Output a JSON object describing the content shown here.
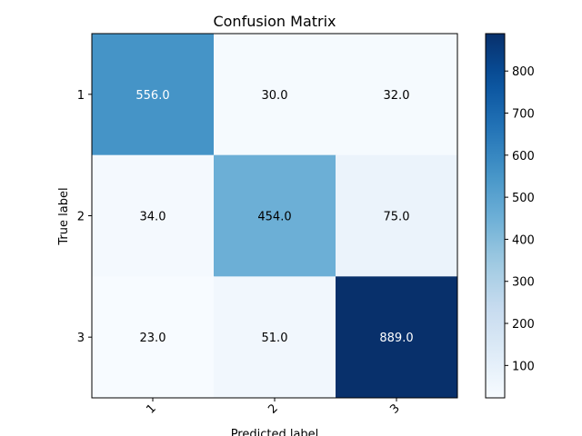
{
  "chart_data": {
    "type": "heatmap",
    "title": "Confusion Matrix",
    "xlabel": "Predicted label",
    "ylabel": "True label",
    "x_categories": [
      "1",
      "2",
      "3"
    ],
    "y_categories": [
      "1",
      "2",
      "3"
    ],
    "values": [
      [
        556.0,
        30.0,
        32.0
      ],
      [
        34.0,
        454.0,
        75.0
      ],
      [
        23.0,
        51.0,
        889.0
      ]
    ],
    "value_labels": [
      [
        "556.0",
        "30.0",
        "32.0"
      ],
      [
        "34.0",
        "454.0",
        "75.0"
      ],
      [
        "23.0",
        "51.0",
        "889.0"
      ]
    ],
    "colormap": "Blues",
    "colorbar": {
      "range": [
        23,
        889
      ],
      "ticks": [
        100,
        200,
        300,
        400,
        500,
        600,
        700,
        800
      ],
      "tick_labels": [
        "100",
        "200",
        "300",
        "400",
        "500",
        "600",
        "700",
        "800"
      ]
    },
    "x_tick_rotation_deg": 45,
    "grid": false
  }
}
